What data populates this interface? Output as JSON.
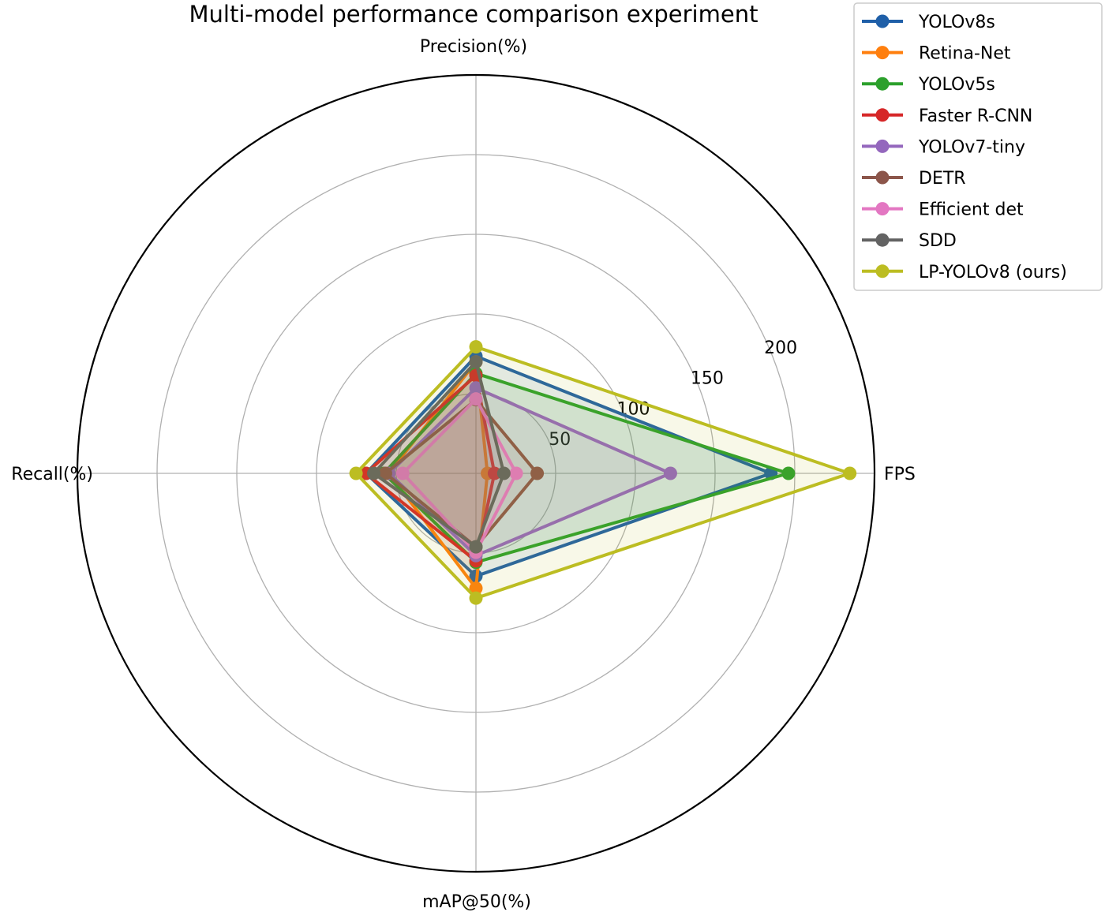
{
  "chart_data": {
    "type": "radar",
    "title": "Multi-model performance comparison experiment",
    "axes": [
      "Precision(%)",
      "FPS",
      "mAP@50(%)",
      "Recall(%)"
    ],
    "radial_ticks": [
      50,
      100,
      150,
      200
    ],
    "rlim": [
      0,
      250
    ],
    "grid": true,
    "legend_position": "top-right",
    "series": [
      {
        "name": "YOLOv8s",
        "color": "#1f5fa8",
        "values": [
          73.5,
          185,
          64.5,
          68.9
        ]
      },
      {
        "name": "Retina-Net",
        "color": "#ff7f0e",
        "values": [
          69.9,
          7.2,
          72.1,
          54.7
        ]
      },
      {
        "name": "YOLOv5s",
        "color": "#2ca02c",
        "values": [
          62.7,
          196.0,
          55.8,
          57.8
        ]
      },
      {
        "name": "Faster R-CNN",
        "color": "#d62728",
        "values": [
          61.4,
          11.6,
          54.9,
          69.1
        ]
      },
      {
        "name": "YOLOv7-tiny",
        "color": "#9467bd",
        "values": [
          53.6,
          122,
          51.6,
          54.5
        ]
      },
      {
        "name": "DETR",
        "color": "#8c564b",
        "values": [
          46.2,
          38.4,
          46.1,
          56.7
        ]
      },
      {
        "name": "Efficient det",
        "color": "#e377c2",
        "values": [
          46.7,
          25.3,
          49.5,
          45.9
        ]
      },
      {
        "name": "SDD",
        "color": "#636363",
        "values": [
          70.0,
          17.5,
          46.1,
          64.1
        ]
      },
      {
        "name": "LP-YOLOv8 (ours)",
        "color": "#bcbd22",
        "values": [
          79.4,
          234.5,
          78.3,
          75.2
        ]
      }
    ]
  }
}
